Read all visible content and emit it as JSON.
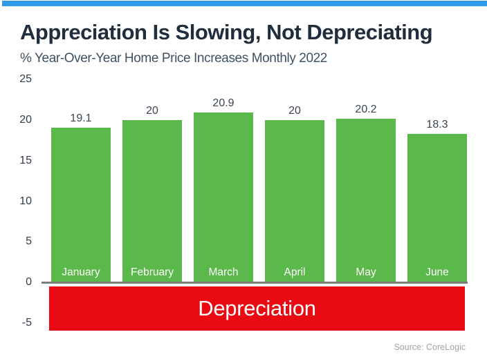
{
  "title": "Appreciation Is Slowing, Not Depreciating",
  "subtitle": "% Year-Over-Year Home Price Increases Monthly 2022",
  "source": "Source: CoreLogic",
  "depreciation_label": "Depreciation",
  "colors": {
    "accent_blue": "#2f9ae8",
    "bar_green": "#5bb84a",
    "band_red": "#ea0b12",
    "title_dark": "#202d3d",
    "subtitle_slate": "#3f5164",
    "axis_gray": "#7d7d7d",
    "source_gray": "#9ba4ad"
  },
  "chart_data": {
    "type": "bar",
    "title": "Appreciation Is Slowing, Not Depreciating",
    "subtitle": "% Year-Over-Year Home Price Increases Monthly 2022",
    "categories": [
      "January",
      "February",
      "March",
      "April",
      "May",
      "June"
    ],
    "values": [
      19.1,
      20,
      20.9,
      20,
      20.2,
      18.3
    ],
    "value_labels": [
      "19.1",
      "20",
      "20.9",
      "20",
      "20.2",
      "18.3"
    ],
    "y_ticks": [
      25,
      20,
      15,
      10,
      5,
      0,
      -5
    ],
    "ylim": [
      -6,
      25
    ],
    "xlabel": "",
    "ylabel": "",
    "grid": false,
    "legend": false,
    "bar_color": "#5bb84a",
    "bar_label_color": "#ffffff",
    "negative_band": {
      "label": "Depreciation",
      "color": "#ea0b12",
      "range": [
        0,
        -5.5
      ]
    },
    "source": "Source: CoreLogic"
  }
}
